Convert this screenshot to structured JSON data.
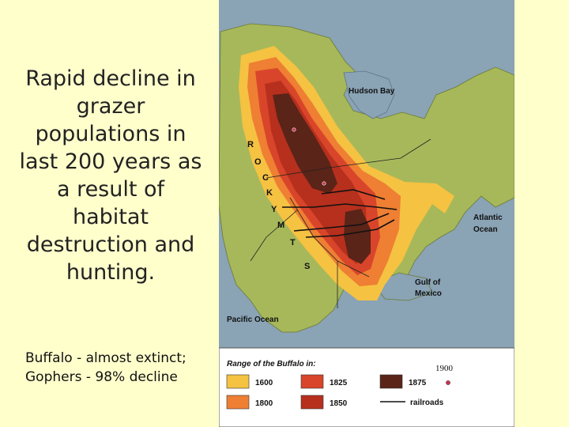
{
  "slide": {
    "title": "Rapid decline in grazer populations in last 200 years as a result of habitat destruction and hunting.",
    "subtitle": "Buffalo - almost extinct;\nGophers - 98% decline"
  },
  "map": {
    "labels": {
      "hudson_bay": "Hudson Bay",
      "atlantic_1": "Atlantic",
      "atlantic_2": "Ocean",
      "gulf_1": "Gulf of",
      "gulf_2": "Mexico",
      "pacific": "Pacific Ocean",
      "rockies": [
        "R",
        "O",
        "C",
        "K",
        "Y",
        "M",
        "T",
        "S"
      ]
    },
    "legend": {
      "title": "Range of the Buffalo in:",
      "items": [
        {
          "label": "1600",
          "color": "#f5c242"
        },
        {
          "label": "1825",
          "color": "#d9452a"
        },
        {
          "label": "1875",
          "color": "#5a2418"
        },
        {
          "label": "1800",
          "color": "#ee7f33"
        },
        {
          "label": "1850",
          "color": "#b6301d"
        },
        {
          "label": "railroads",
          "color": "#111111"
        }
      ],
      "extra_year": "1900",
      "extra_color": "#cc3355"
    },
    "colors": {
      "land": "#a7b85a",
      "water": "#8aa3b5"
    }
  }
}
